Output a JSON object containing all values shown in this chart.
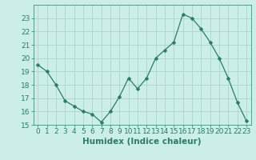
{
  "x": [
    0,
    1,
    2,
    3,
    4,
    5,
    6,
    7,
    8,
    9,
    10,
    11,
    12,
    13,
    14,
    15,
    16,
    17,
    18,
    19,
    20,
    21,
    22,
    23
  ],
  "y": [
    19.5,
    19.0,
    18.0,
    16.8,
    16.4,
    16.0,
    15.8,
    15.2,
    16.0,
    17.1,
    18.5,
    17.7,
    18.5,
    20.0,
    20.6,
    21.2,
    23.3,
    23.0,
    22.2,
    21.2,
    20.0,
    18.5,
    16.7,
    15.3
  ],
  "line_color": "#2d7a6a",
  "marker": "D",
  "marker_size": 2.5,
  "bg_color": "#cceee8",
  "grid_color": "#aad4ce",
  "spine_color": "#2d7a6a",
  "xlabel": "Humidex (Indice chaleur)",
  "ylim": [
    15,
    24
  ],
  "xlim": [
    -0.5,
    23.5
  ],
  "yticks": [
    15,
    16,
    17,
    18,
    19,
    20,
    21,
    22,
    23
  ],
  "xticks": [
    0,
    1,
    2,
    3,
    4,
    5,
    6,
    7,
    8,
    9,
    10,
    11,
    12,
    13,
    14,
    15,
    16,
    17,
    18,
    19,
    20,
    21,
    22,
    23
  ],
  "font_color": "#2d7a6a",
  "tick_fontsize": 6.5,
  "label_fontsize": 7.5
}
